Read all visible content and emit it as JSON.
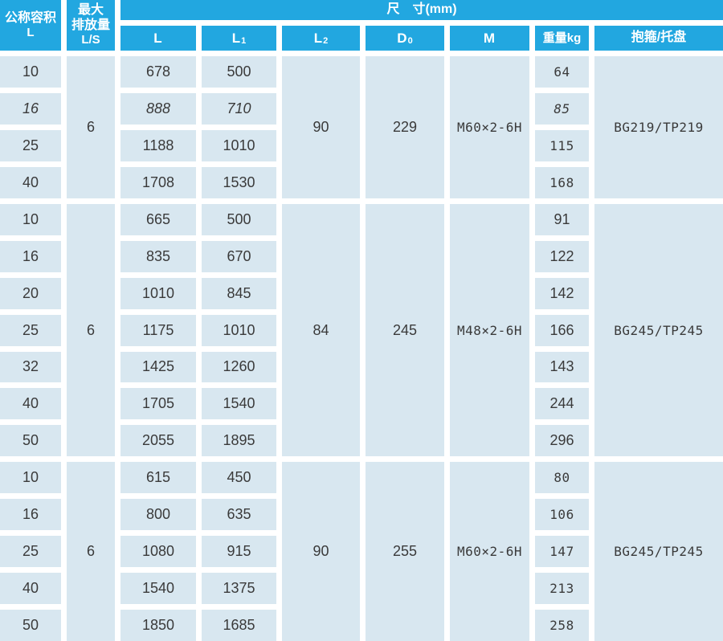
{
  "colors": {
    "header_blue": "#22a7e0",
    "cell_blue": "#d8e7f0",
    "gap_white": "#ffffff",
    "text_dark": "#3a3a3a"
  },
  "header": {
    "volume": {
      "line1": "公称容积",
      "line2": "L"
    },
    "discharge": {
      "line1": "最大",
      "line2": "排放量",
      "line3": "L/S"
    },
    "dimensions_title": "尺　寸(mm)",
    "columns": {
      "L": {
        "main": "L",
        "sub": ""
      },
      "L1": {
        "main": "L",
        "sub": "1"
      },
      "L2": {
        "main": "L",
        "sub": "2"
      },
      "D0": {
        "main": "D",
        "sub": "0"
      },
      "M": {
        "main": "M",
        "sub": ""
      },
      "weight": "重量kg",
      "clamp": "抱箍/托盘"
    }
  },
  "groups": [
    {
      "discharge": "6",
      "L2": "90",
      "D0": "229",
      "M": "M60×2-6H",
      "clamp": "BG219/TP219",
      "rows": [
        {
          "vol": "10",
          "L": "678",
          "L1": "500",
          "w": "64",
          "italic": false
        },
        {
          "vol": "16",
          "L": "888",
          "L1": "710",
          "w": "85",
          "italic": true
        },
        {
          "vol": "25",
          "L": "1188",
          "L1": "1010",
          "w": "115",
          "italic": false
        },
        {
          "vol": "40",
          "L": "1708",
          "L1": "1530",
          "w": "168",
          "italic": false
        }
      ]
    },
    {
      "discharge": "6",
      "L2": "84",
      "D0": "245",
      "M": "M48×2-6H",
      "clamp": "BG245/TP245",
      "rows": [
        {
          "vol": "10",
          "L": "665",
          "L1": "500",
          "w": "91",
          "italic": false
        },
        {
          "vol": "16",
          "L": "835",
          "L1": "670",
          "w": "122",
          "italic": false
        },
        {
          "vol": "20",
          "L": "1010",
          "L1": "845",
          "w": "142",
          "italic": false
        },
        {
          "vol": "25",
          "L": "1175",
          "L1": "1010",
          "w": "166",
          "italic": false
        },
        {
          "vol": "32",
          "L": "1425",
          "L1": "1260",
          "w": "143",
          "italic": false
        },
        {
          "vol": "40",
          "L": "1705",
          "L1": "1540",
          "w": "244",
          "italic": false
        },
        {
          "vol": "50",
          "L": "2055",
          "L1": "1895",
          "w": "296",
          "italic": false
        }
      ]
    },
    {
      "discharge": "6",
      "L2": "90",
      "D0": "255",
      "M": "M60×2-6H",
      "clamp": "BG245/TP245",
      "rows": [
        {
          "vol": "10",
          "L": "615",
          "L1": "450",
          "w": "80",
          "italic": false
        },
        {
          "vol": "16",
          "L": "800",
          "L1": "635",
          "w": "106",
          "italic": false
        },
        {
          "vol": "25",
          "L": "1080",
          "L1": "915",
          "w": "147",
          "italic": false
        },
        {
          "vol": "40",
          "L": "1540",
          "L1": "1375",
          "w": "213",
          "italic": false
        },
        {
          "vol": "50",
          "L": "1850",
          "L1": "1685",
          "w": "258",
          "italic": false
        }
      ]
    }
  ]
}
